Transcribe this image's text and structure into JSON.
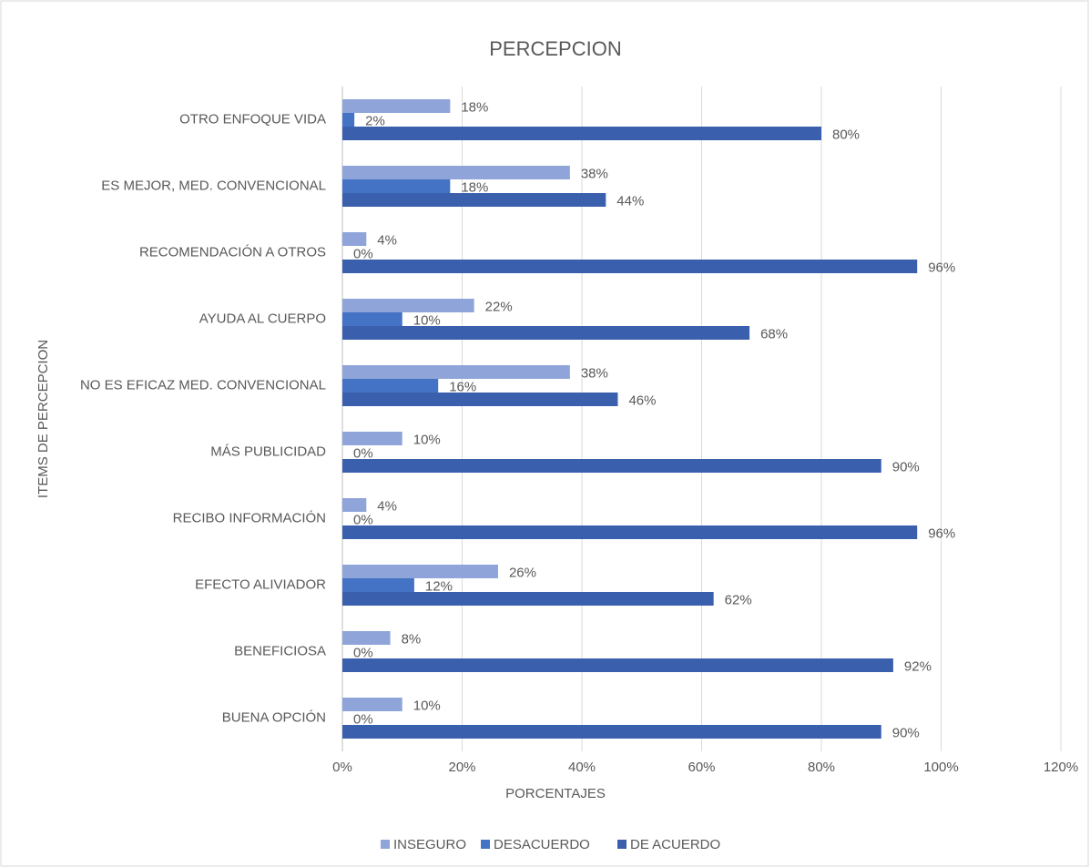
{
  "chart_data": {
    "type": "hbar",
    "title": "PERCEPCION",
    "x_label": "PORCENTAJES",
    "y_label": "ITEMS DE PERCEPCION",
    "categories": [
      "BUENA OPCIÓN",
      "BENEFICIOSA",
      "EFECTO ALIVIADOR",
      "RECIBO INFORMACIÓN",
      "MÁS PUBLICIDAD",
      "NO ES EFICAZ MED. CONVENCIONAL",
      "AYUDA AL CUERPO",
      "RECOMENDACIÓN A OTROS",
      "ES MEJOR, MED. CONVENCIONAL",
      "OTRO ENFOQUE VIDA"
    ],
    "series": [
      {
        "name": "INSEGURO",
        "color": "#8fa5d9",
        "values": [
          10,
          8,
          26,
          4,
          10,
          38,
          22,
          4,
          38,
          18
        ],
        "value_labels": [
          "10%",
          "8%",
          "26%",
          "4%",
          "10%",
          "38%",
          "22%",
          "4%",
          "38%",
          "18%"
        ]
      },
      {
        "name": "DESACUERDO",
        "color": "#4472c4",
        "values": [
          0,
          0,
          12,
          0,
          0,
          16,
          10,
          0,
          18,
          2
        ],
        "value_labels": [
          "0%",
          "0%",
          "12%",
          "0%",
          "0%",
          "16%",
          "10%",
          "0%",
          "18%",
          "2%"
        ]
      },
      {
        "name": "DE ACUERDO",
        "color": "#3a5fad",
        "values": [
          90,
          92,
          62,
          96,
          90,
          46,
          68,
          96,
          44,
          80
        ],
        "value_labels": [
          "90%",
          "92%",
          "62%",
          "96%",
          "90%",
          "46%",
          "68%",
          "96%",
          "44%",
          "80%"
        ]
      }
    ],
    "xlim": [
      0,
      120
    ],
    "xticks": [
      {
        "value": 0,
        "label": "0%"
      },
      {
        "value": 20,
        "label": "20%"
      },
      {
        "value": 40,
        "label": "40%"
      },
      {
        "value": 60,
        "label": "60%"
      },
      {
        "value": 80,
        "label": "80%"
      },
      {
        "value": 100,
        "label": "100%"
      },
      {
        "value": 120,
        "label": "120%"
      }
    ],
    "grid": true,
    "legend": "bottom"
  }
}
